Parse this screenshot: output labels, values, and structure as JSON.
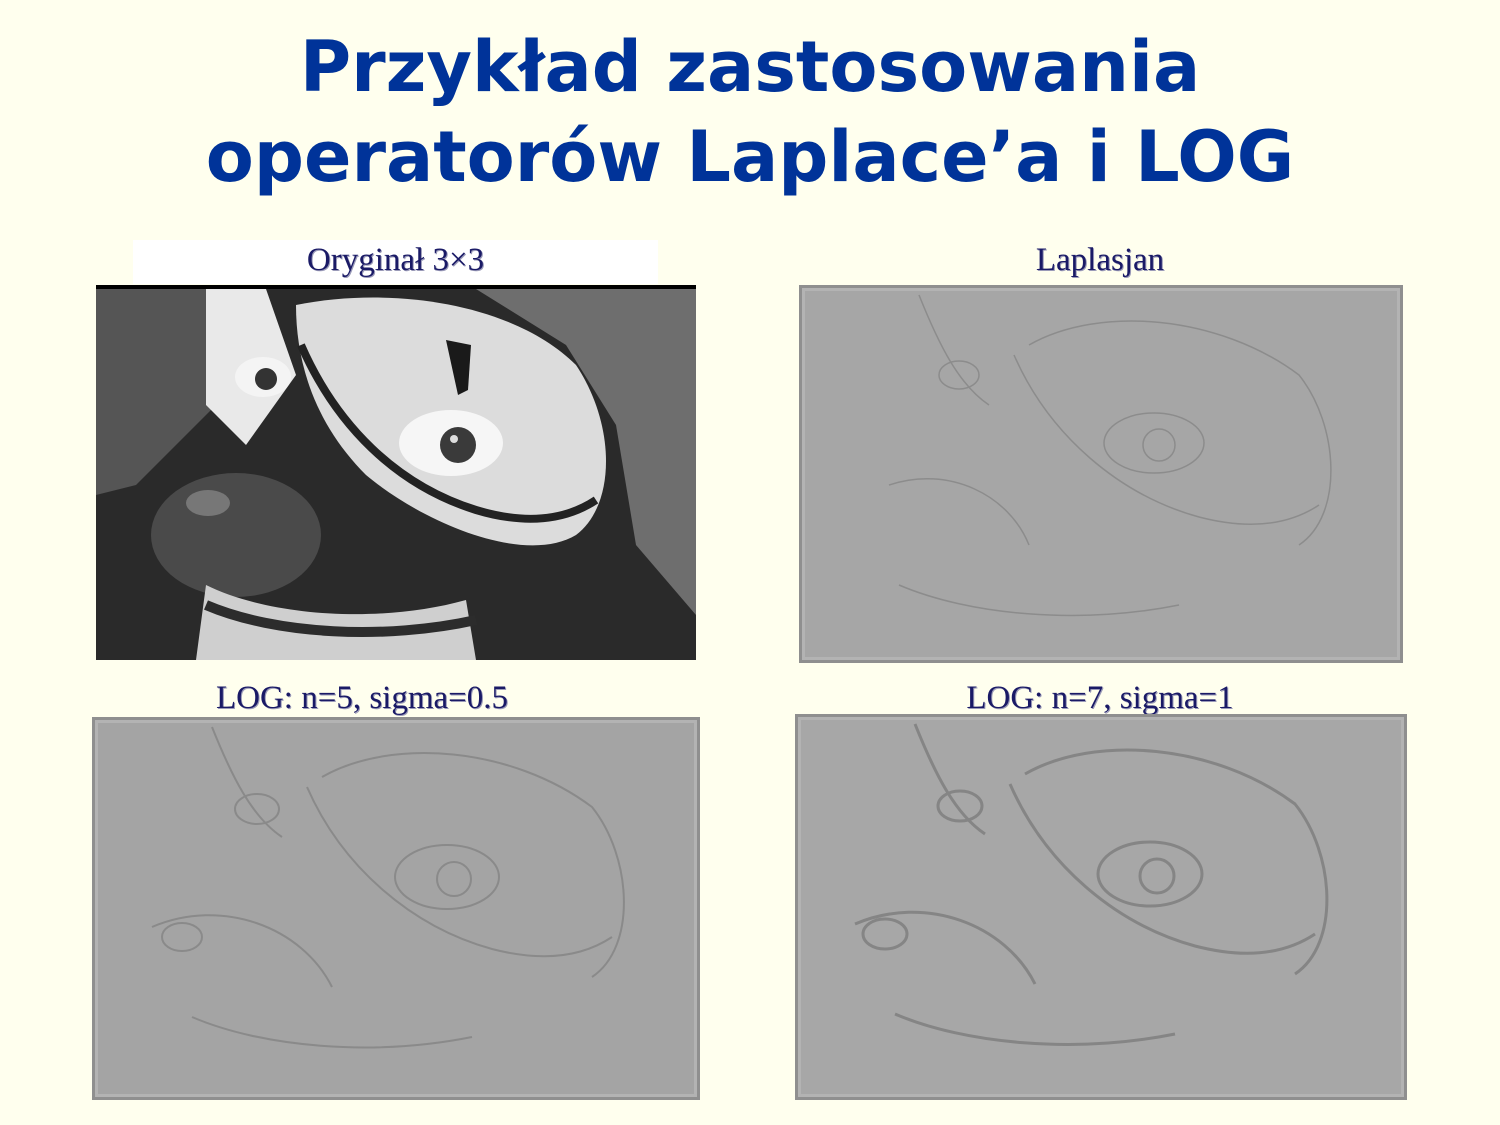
{
  "slide": {
    "title_line1": "Przykład zastosowania",
    "title_line2": "operatorów Laplace’a i LOG"
  },
  "panels": {
    "original": {
      "caption": "Oryginał 3×3"
    },
    "laplacian": {
      "caption": "Laplasjan"
    },
    "log_small": {
      "caption": "LOG: n=5, sigma=0.5"
    },
    "log_large": {
      "caption": "LOG: n=7, sigma=1"
    }
  },
  "colors": {
    "background": "#FFFFEE",
    "title": "#003399",
    "caption": "#1a1a66"
  }
}
